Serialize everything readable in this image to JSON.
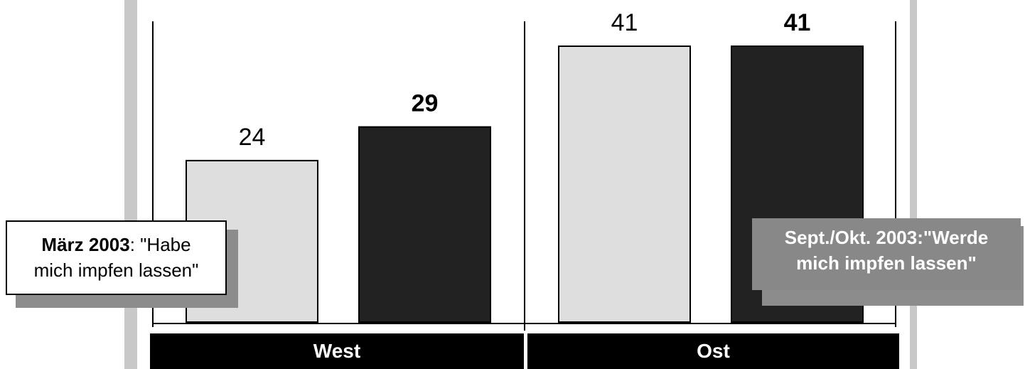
{
  "chart_data": {
    "type": "bar",
    "categories": [
      "West",
      "Ost"
    ],
    "series": [
      {
        "name": "März 2003: \"Habe mich impfen lassen\"",
        "values": [
          24,
          41
        ],
        "color": "#dedede",
        "label_bold": false
      },
      {
        "name": "Sept./Okt. 2003:\"Werde mich impfen lassen\"",
        "values": [
          29,
          41
        ],
        "color": "#222222",
        "label_bold": true
      }
    ],
    "ylim": [
      0,
      45
    ],
    "grid": false,
    "value_labels": [
      "24",
      "29",
      "41",
      "41"
    ]
  },
  "legend": {
    "march": {
      "bold": "März 2003",
      "rest": ": \"Habe",
      "line2": "mich impfen lassen\""
    },
    "sept": {
      "line1": "Sept./Okt. 2003:\"Werde",
      "line2": "mich impfen lassen\""
    }
  },
  "colors": {
    "frame": "#c8c8c8",
    "group_band": "#000000"
  }
}
